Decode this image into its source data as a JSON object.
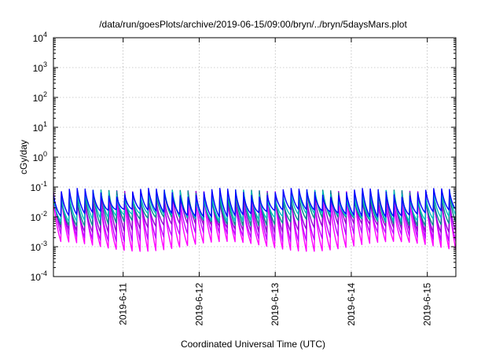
{
  "chart_data": {
    "type": "line",
    "title": "/data/run/goesPlots/archive/2019-06-15/09:00/bryn/../bryn/5daysMars.plot",
    "xlabel": "Coordinated Universal Time (UTC)",
    "ylabel": "cGy/day",
    "yscale": "log",
    "ylim": [
      0.0001,
      10000
    ],
    "xlim": [
      "2019-06-10 02:00",
      "2019-06-15 09:00"
    ],
    "grid": true,
    "legend": "none",
    "y_ticks": [
      {
        "base": "10",
        "exp": "-4",
        "value": 0.0001
      },
      {
        "base": "10",
        "exp": "-3",
        "value": 0.001
      },
      {
        "base": "10",
        "exp": "-2",
        "value": 0.01
      },
      {
        "base": "10",
        "exp": "-1",
        "value": 0.1
      },
      {
        "base": "10",
        "exp": "0",
        "value": 1
      },
      {
        "base": "10",
        "exp": "1",
        "value": 10
      },
      {
        "base": "10",
        "exp": "2",
        "value": 100
      },
      {
        "base": "10",
        "exp": "3",
        "value": 1000
      },
      {
        "base": "10",
        "exp": "4",
        "value": 10000
      }
    ],
    "x_ticks": [
      {
        "label": "2019-6-11",
        "time": "2019-06-11 00:00"
      },
      {
        "label": "2019-6-12",
        "time": "2019-06-12 00:00"
      },
      {
        "label": "2019-6-13",
        "time": "2019-06-13 00:00"
      },
      {
        "label": "2019-6-14",
        "time": "2019-06-14 00:00"
      },
      {
        "label": "2019-6-15",
        "time": "2019-06-15 00:00"
      }
    ],
    "series": [
      {
        "color": "#ff00ff",
        "sawtooth_period_hours": 2.5,
        "peak_range": [
          0.02,
          0.06
        ],
        "min_range": [
          0.0007,
          0.0015
        ]
      },
      {
        "color": "#c000ff",
        "sawtooth_period_hours": 2.5,
        "peak_range": [
          0.025,
          0.07
        ],
        "min_range": [
          0.0015,
          0.003
        ]
      },
      {
        "color": "#9400d3",
        "sawtooth_period_hours": 2.5,
        "peak_range": [
          0.03,
          0.075
        ],
        "min_range": [
          0.003,
          0.006
        ]
      },
      {
        "color": "#008b8b",
        "sawtooth_period_hours": 2.5,
        "peak_range": [
          0.035,
          0.08
        ],
        "min_range": [
          0.005,
          0.01
        ]
      },
      {
        "color": "#00c0c0",
        "sawtooth_period_hours": 2.5,
        "peak_range": [
          0.04,
          0.08
        ],
        "min_range": [
          0.007,
          0.013
        ]
      },
      {
        "color": "#0000ff",
        "sawtooth_period_hours": 2.5,
        "peak_range": [
          0.045,
          0.09
        ],
        "min_range": [
          0.01,
          0.018
        ]
      }
    ]
  }
}
